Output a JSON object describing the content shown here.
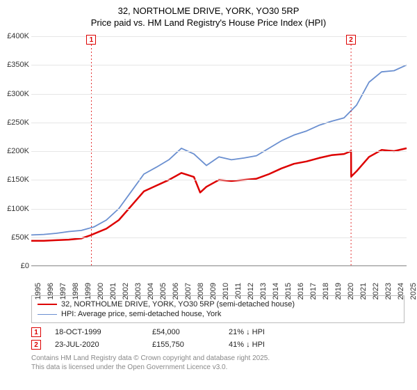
{
  "title": {
    "line1": "32, NORTHOLME DRIVE, YORK, YO30 5RP",
    "line2": "Price paid vs. HM Land Registry's House Price Index (HPI)"
  },
  "chart": {
    "type": "line",
    "background_color": "#ffffff",
    "grid_color": "#e6e6e6",
    "axis_color": "#999999",
    "label_fontsize": 11,
    "x": {
      "min": 1995,
      "max": 2025,
      "ticks": [
        1995,
        1996,
        1997,
        1998,
        1999,
        2000,
        2001,
        2002,
        2003,
        2004,
        2005,
        2006,
        2007,
        2008,
        2009,
        2010,
        2011,
        2012,
        2013,
        2014,
        2015,
        2016,
        2017,
        2018,
        2019,
        2020,
        2021,
        2022,
        2023,
        2024,
        2025
      ]
    },
    "y": {
      "min": 0,
      "max": 400000,
      "ticks": [
        0,
        50000,
        100000,
        150000,
        200000,
        250000,
        300000,
        350000,
        400000
      ],
      "tick_labels": [
        "£0",
        "£50K",
        "£100K",
        "£150K",
        "£200K",
        "£250K",
        "£300K",
        "£350K",
        "£400K"
      ]
    },
    "series": [
      {
        "name": "32, NORTHOLME DRIVE, YORK, YO30 5RP (semi-detached house)",
        "color": "#dd0000",
        "width": 2.5,
        "points": [
          [
            1995,
            44000
          ],
          [
            1996,
            44000
          ],
          [
            1997,
            45000
          ],
          [
            1998,
            46000
          ],
          [
            1999,
            48000
          ],
          [
            1999.8,
            54000
          ],
          [
            2000,
            56000
          ],
          [
            2001,
            65000
          ],
          [
            2002,
            80000
          ],
          [
            2003,
            105000
          ],
          [
            2004,
            130000
          ],
          [
            2005,
            140000
          ],
          [
            2006,
            150000
          ],
          [
            2007,
            162000
          ],
          [
            2008,
            155000
          ],
          [
            2008.5,
            128000
          ],
          [
            2009,
            138000
          ],
          [
            2010,
            150000
          ],
          [
            2011,
            148000
          ],
          [
            2012,
            150000
          ],
          [
            2013,
            152000
          ],
          [
            2014,
            160000
          ],
          [
            2015,
            170000
          ],
          [
            2016,
            178000
          ],
          [
            2017,
            182000
          ],
          [
            2018,
            188000
          ],
          [
            2019,
            193000
          ],
          [
            2020,
            195000
          ],
          [
            2020.56,
            200000
          ],
          [
            2020.57,
            155750
          ],
          [
            2021,
            165000
          ],
          [
            2022,
            190000
          ],
          [
            2023,
            202000
          ],
          [
            2024,
            200000
          ],
          [
            2025,
            205000
          ]
        ]
      },
      {
        "name": "HPI: Average price, semi-detached house, York",
        "color": "#6a8fd0",
        "width": 1.8,
        "points": [
          [
            1995,
            54000
          ],
          [
            1996,
            55000
          ],
          [
            1997,
            57000
          ],
          [
            1998,
            60000
          ],
          [
            1999,
            62000
          ],
          [
            2000,
            68000
          ],
          [
            2001,
            80000
          ],
          [
            2002,
            100000
          ],
          [
            2003,
            130000
          ],
          [
            2004,
            160000
          ],
          [
            2005,
            172000
          ],
          [
            2006,
            185000
          ],
          [
            2007,
            205000
          ],
          [
            2008,
            195000
          ],
          [
            2009,
            175000
          ],
          [
            2010,
            190000
          ],
          [
            2011,
            185000
          ],
          [
            2012,
            188000
          ],
          [
            2013,
            192000
          ],
          [
            2014,
            205000
          ],
          [
            2015,
            218000
          ],
          [
            2016,
            228000
          ],
          [
            2017,
            235000
          ],
          [
            2018,
            245000
          ],
          [
            2019,
            252000
          ],
          [
            2020,
            258000
          ],
          [
            2021,
            280000
          ],
          [
            2022,
            320000
          ],
          [
            2023,
            338000
          ],
          [
            2024,
            340000
          ],
          [
            2025,
            350000
          ]
        ]
      }
    ],
    "markers": [
      {
        "id": "1",
        "x": 1999.8,
        "top": true
      },
      {
        "id": "2",
        "x": 2020.56,
        "top": true
      }
    ]
  },
  "legend": {
    "items": [
      {
        "color": "#dd0000",
        "width": 2.5,
        "label": "32, NORTHOLME DRIVE, YORK, YO30 5RP (semi-detached house)"
      },
      {
        "color": "#6a8fd0",
        "width": 1.8,
        "label": "HPI: Average price, semi-detached house, York"
      }
    ]
  },
  "events": [
    {
      "id": "1",
      "date": "18-OCT-1999",
      "price": "£54,000",
      "comp": "21% ↓ HPI"
    },
    {
      "id": "2",
      "date": "23-JUL-2020",
      "price": "£155,750",
      "comp": "41% ↓ HPI"
    }
  ],
  "footnote": {
    "line1": "Contains HM Land Registry data © Crown copyright and database right 2025.",
    "line2": "This data is licensed under the Open Government Licence v3.0."
  }
}
